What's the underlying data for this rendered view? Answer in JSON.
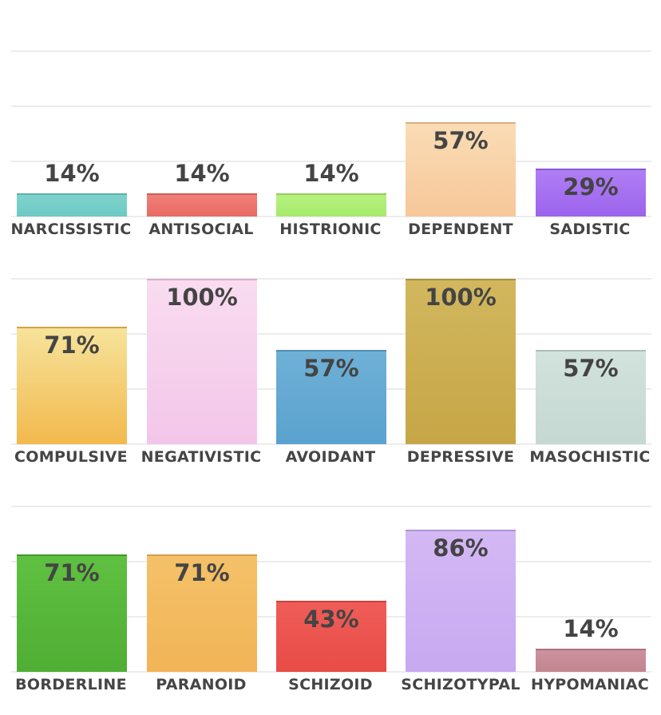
{
  "chart_data": [
    {
      "type": "bar",
      "title": "",
      "xlabel": "",
      "ylabel": "",
      "ylim": [
        0,
        100
      ],
      "categories": [
        "NARCISSISTIC",
        "ANTISOCIAL",
        "HISTRIONIC",
        "DEPENDENT",
        "SADISTIC"
      ],
      "values": [
        14,
        14,
        14,
        57,
        29
      ],
      "value_labels": [
        "14%",
        "14%",
        "14%",
        "57%",
        "29%"
      ],
      "colors": [
        [
          "#7fd3cc",
          "#6cc9c2"
        ],
        [
          "#f07f78",
          "#e86a63"
        ],
        [
          "#b6f17f",
          "#a5ea6c"
        ],
        [
          "#fadcb5",
          "#f6c799"
        ],
        [
          "#b07ef5",
          "#9b63ec"
        ]
      ],
      "grid": true
    },
    {
      "type": "bar",
      "title": "",
      "xlabel": "",
      "ylabel": "",
      "ylim": [
        0,
        100
      ],
      "categories": [
        "COMPULSIVE",
        "NEGATIVISTIC",
        "AVOIDANT",
        "DEPRESSIVE",
        "MASOCHISTIC"
      ],
      "values": [
        71,
        100,
        57,
        100,
        57
      ],
      "value_labels": [
        "71%",
        "100%",
        "57%",
        "100%",
        "57%"
      ],
      "colors": [
        [
          "#f6e39b",
          "#f2b94d"
        ],
        [
          "#f9dcf0",
          "#f3c6e9"
        ],
        [
          "#6fb0d6",
          "#5aa2cf"
        ],
        [
          "#d2b75e",
          "#c6a646"
        ],
        [
          "#d2e2dc",
          "#c5d8d2"
        ]
      ],
      "grid": true
    },
    {
      "type": "bar",
      "title": "",
      "xlabel": "",
      "ylabel": "",
      "ylim": [
        0,
        100
      ],
      "categories": [
        "BORDERLINE",
        "PARANOID",
        "SCHIZOID",
        "SCHIZOTYPAL",
        "HYPOMANIAC"
      ],
      "values": [
        71,
        71,
        43,
        86,
        14
      ],
      "value_labels": [
        "71%",
        "71%",
        "43%",
        "86%",
        "14%"
      ],
      "colors": [
        [
          "#5fc041",
          "#4fae34"
        ],
        [
          "#f4c168",
          "#f2b457"
        ],
        [
          "#ef5c57",
          "#e94c47"
        ],
        [
          "#d3b8f4",
          "#c8a9f1"
        ],
        [
          "#cb929f",
          "#c2858f"
        ]
      ],
      "grid": true
    }
  ]
}
